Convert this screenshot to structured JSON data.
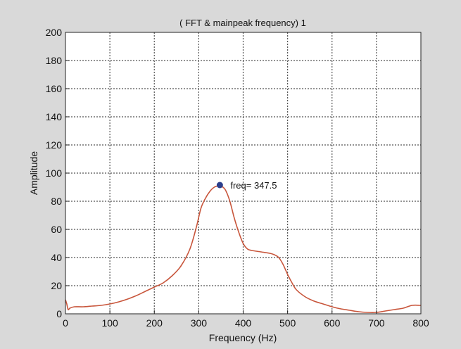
{
  "chart_data": {
    "type": "line",
    "title": "( FFT & mainpeak frequency) 1",
    "xlabel": "Frequency (Hz)",
    "ylabel": "Amplitude",
    "xlim": [
      0,
      800
    ],
    "ylim": [
      0,
      200
    ],
    "xticks": [
      0,
      100,
      200,
      300,
      400,
      500,
      600,
      700,
      800
    ],
    "yticks": [
      0,
      20,
      40,
      60,
      80,
      100,
      120,
      140,
      160,
      180,
      200
    ],
    "grid": true,
    "colors": {
      "line": "#c8563c",
      "peak": "#2b3f8c",
      "plot_bg": "#ffffff",
      "figure_bg": "#d9d9d9",
      "grid": "#555555"
    },
    "series": [
      {
        "x": [
          0,
          3,
          6,
          10,
          20,
          40,
          60,
          80,
          100,
          120,
          140,
          160,
          180,
          200,
          220,
          240,
          260,
          280,
          295,
          305,
          315,
          325,
          335,
          345,
          350,
          360,
          370,
          380,
          390,
          400,
          410,
          420,
          440,
          460,
          470,
          480,
          490,
          500,
          510,
          520,
          540,
          560,
          580,
          600,
          620,
          640,
          660,
          680,
          700,
          720,
          740,
          760,
          780,
          800
        ],
        "y": [
          10,
          7,
          3,
          4,
          5,
          5,
          5.5,
          6,
          7,
          8.5,
          10.5,
          13,
          16,
          19,
          22,
          27,
          34,
          46,
          62,
          75,
          82,
          87,
          90,
          91,
          91,
          88,
          80,
          68,
          58,
          50,
          46,
          45,
          44,
          43,
          42,
          40,
          35,
          28,
          22,
          17,
          12,
          9,
          7,
          5,
          3.5,
          2.5,
          1.5,
          1,
          1,
          2,
          3,
          4,
          6,
          6
        ]
      }
    ],
    "annotations": [
      {
        "x": 347.5,
        "y": 91.5,
        "label": "freq= 347.5"
      }
    ]
  }
}
